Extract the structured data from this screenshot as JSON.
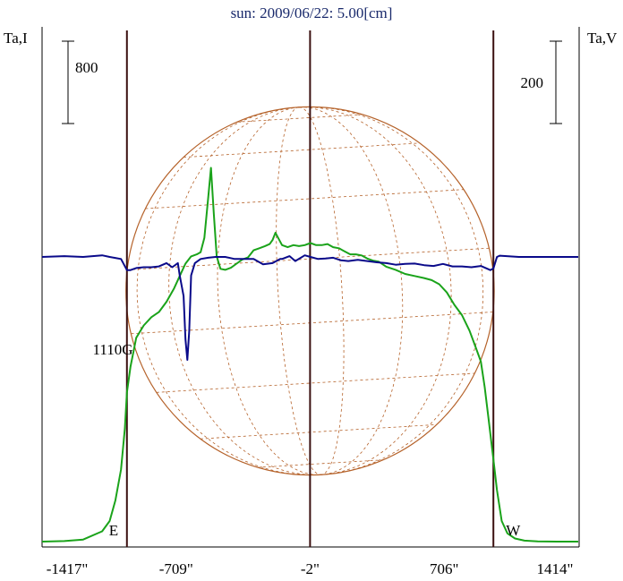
{
  "chart_data": {
    "type": "line",
    "title": "sun: 2009/06/22: 5.00[cm]",
    "left_axis_label": "Ta,I",
    "right_axis_label": "Ta,V",
    "left_scale_bar_label": "800",
    "right_scale_bar_label": "200",
    "x_ticks": [
      -1417,
      -709,
      -2,
      706,
      1414
    ],
    "x_tick_labels": [
      "-1417\"",
      "-709\"",
      "-2\"",
      "706\"",
      "1414\""
    ],
    "xlim": [
      -1417,
      1414
    ],
    "limb_markers": [
      {
        "label": "E",
        "x": -969
      },
      {
        "label": "W",
        "x": 966
      }
    ],
    "center_marker_x": -2,
    "annotation": {
      "text": "1110G",
      "x": -1150
    },
    "disk": {
      "center_x": -2,
      "radius_arcsec": 972,
      "meridians": 9,
      "parallels": 9
    },
    "left_scale": {
      "bar_value": 800
    },
    "right_scale": {
      "bar_value": 200
    },
    "series": [
      {
        "name": "Ta,I",
        "color": "#1aa31a",
        "x": [
          -1417,
          -1300,
          -1200,
          -1100,
          -1060,
          -1030,
          -1000,
          -980,
          -969,
          -950,
          -920,
          -880,
          -840,
          -800,
          -760,
          -720,
          -690,
          -660,
          -630,
          -600,
          -580,
          -560,
          -540,
          -525,
          -510,
          -495,
          -475,
          -450,
          -420,
          -390,
          -360,
          -330,
          -300,
          -270,
          -240,
          -215,
          -200,
          -185,
          -170,
          -150,
          -120,
          -90,
          -60,
          -30,
          0,
          30,
          60,
          90,
          120,
          150,
          180,
          210,
          240,
          270,
          300,
          330,
          360,
          400,
          450,
          500,
          550,
          600,
          640,
          680,
          720,
          760,
          800,
          840,
          870,
          900,
          920,
          940,
          966,
          985,
          1010,
          1040,
          1080,
          1130,
          1200,
          1300,
          1414
        ],
        "y": [
          0,
          5,
          20,
          100,
          200,
          400,
          700,
          1100,
          1450,
          1700,
          1980,
          2100,
          2180,
          2230,
          2330,
          2460,
          2580,
          2700,
          2770,
          2790,
          2810,
          2950,
          3340,
          3630,
          3180,
          2770,
          2650,
          2640,
          2660,
          2700,
          2740,
          2760,
          2830,
          2850,
          2870,
          2890,
          2930,
          3000,
          2950,
          2880,
          2860,
          2880,
          2870,
          2880,
          2900,
          2880,
          2880,
          2890,
          2860,
          2850,
          2820,
          2790,
          2790,
          2780,
          2750,
          2730,
          2720,
          2670,
          2640,
          2600,
          2580,
          2560,
          2540,
          2500,
          2420,
          2300,
          2200,
          2050,
          1900,
          1750,
          1500,
          1200,
          800,
          500,
          200,
          80,
          30,
          10,
          3,
          0,
          0
        ]
      },
      {
        "name": "Ta,V",
        "color": "#0a0a8a",
        "x": [
          -1417,
          -1300,
          -1200,
          -1100,
          -1060,
          -1000,
          -969,
          -950,
          -920,
          -880,
          -840,
          -800,
          -760,
          -730,
          -700,
          -690,
          -670,
          -660,
          -650,
          -640,
          -630,
          -610,
          -580,
          -540,
          -500,
          -450,
          -400,
          -350,
          -300,
          -250,
          -200,
          -160,
          -150,
          -110,
          -80,
          -30,
          0,
          40,
          80,
          120,
          160,
          200,
          250,
          300,
          350,
          400,
          450,
          500,
          550,
          600,
          650,
          700,
          750,
          800,
          850,
          900,
          950,
          966,
          985,
          1000,
          1100,
          1200,
          1300,
          1414
        ],
        "y": [
          0,
          2,
          0,
          4,
          0,
          -5,
          -32,
          -32,
          -27,
          -25,
          -25,
          -23,
          -15,
          -25,
          -15,
          -45,
          -95,
          -200,
          -250,
          -180,
          -45,
          -15,
          -5,
          -2,
          0,
          0,
          -5,
          -5,
          -5,
          -18,
          -15,
          -5,
          -5,
          2,
          -10,
          4,
          0,
          -5,
          -4,
          -2,
          -8,
          -10,
          -7,
          -10,
          -13,
          -15,
          -19,
          -17,
          -16,
          -20,
          -22,
          -17,
          -23,
          -23,
          -25,
          -22,
          -32,
          -28,
          0,
          3,
          0,
          0,
          0,
          0
        ]
      }
    ]
  }
}
